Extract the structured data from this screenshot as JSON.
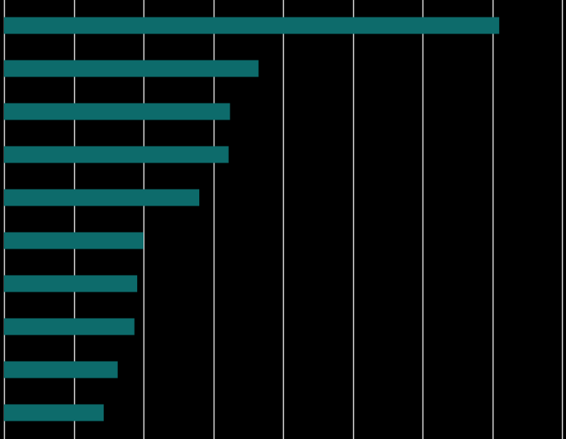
{
  "chart_data": {
    "type": "bar",
    "orientation": "horizontal",
    "title": "",
    "xlabel": "",
    "ylabel": "",
    "categories": [
      "",
      "",
      "",
      "",
      "",
      "",
      "",
      "",
      "",
      ""
    ],
    "values": [
      71,
      36.5,
      32.4,
      32.2,
      28,
      20,
      19.1,
      18.7,
      16.3,
      14.3
    ],
    "xlim": [
      0,
      80
    ],
    "grid_step": 10,
    "grid": true,
    "legend": "none",
    "colors": {
      "background": "#000000",
      "bar": "#0d6b6b",
      "grid": "#d9d9d9"
    }
  }
}
